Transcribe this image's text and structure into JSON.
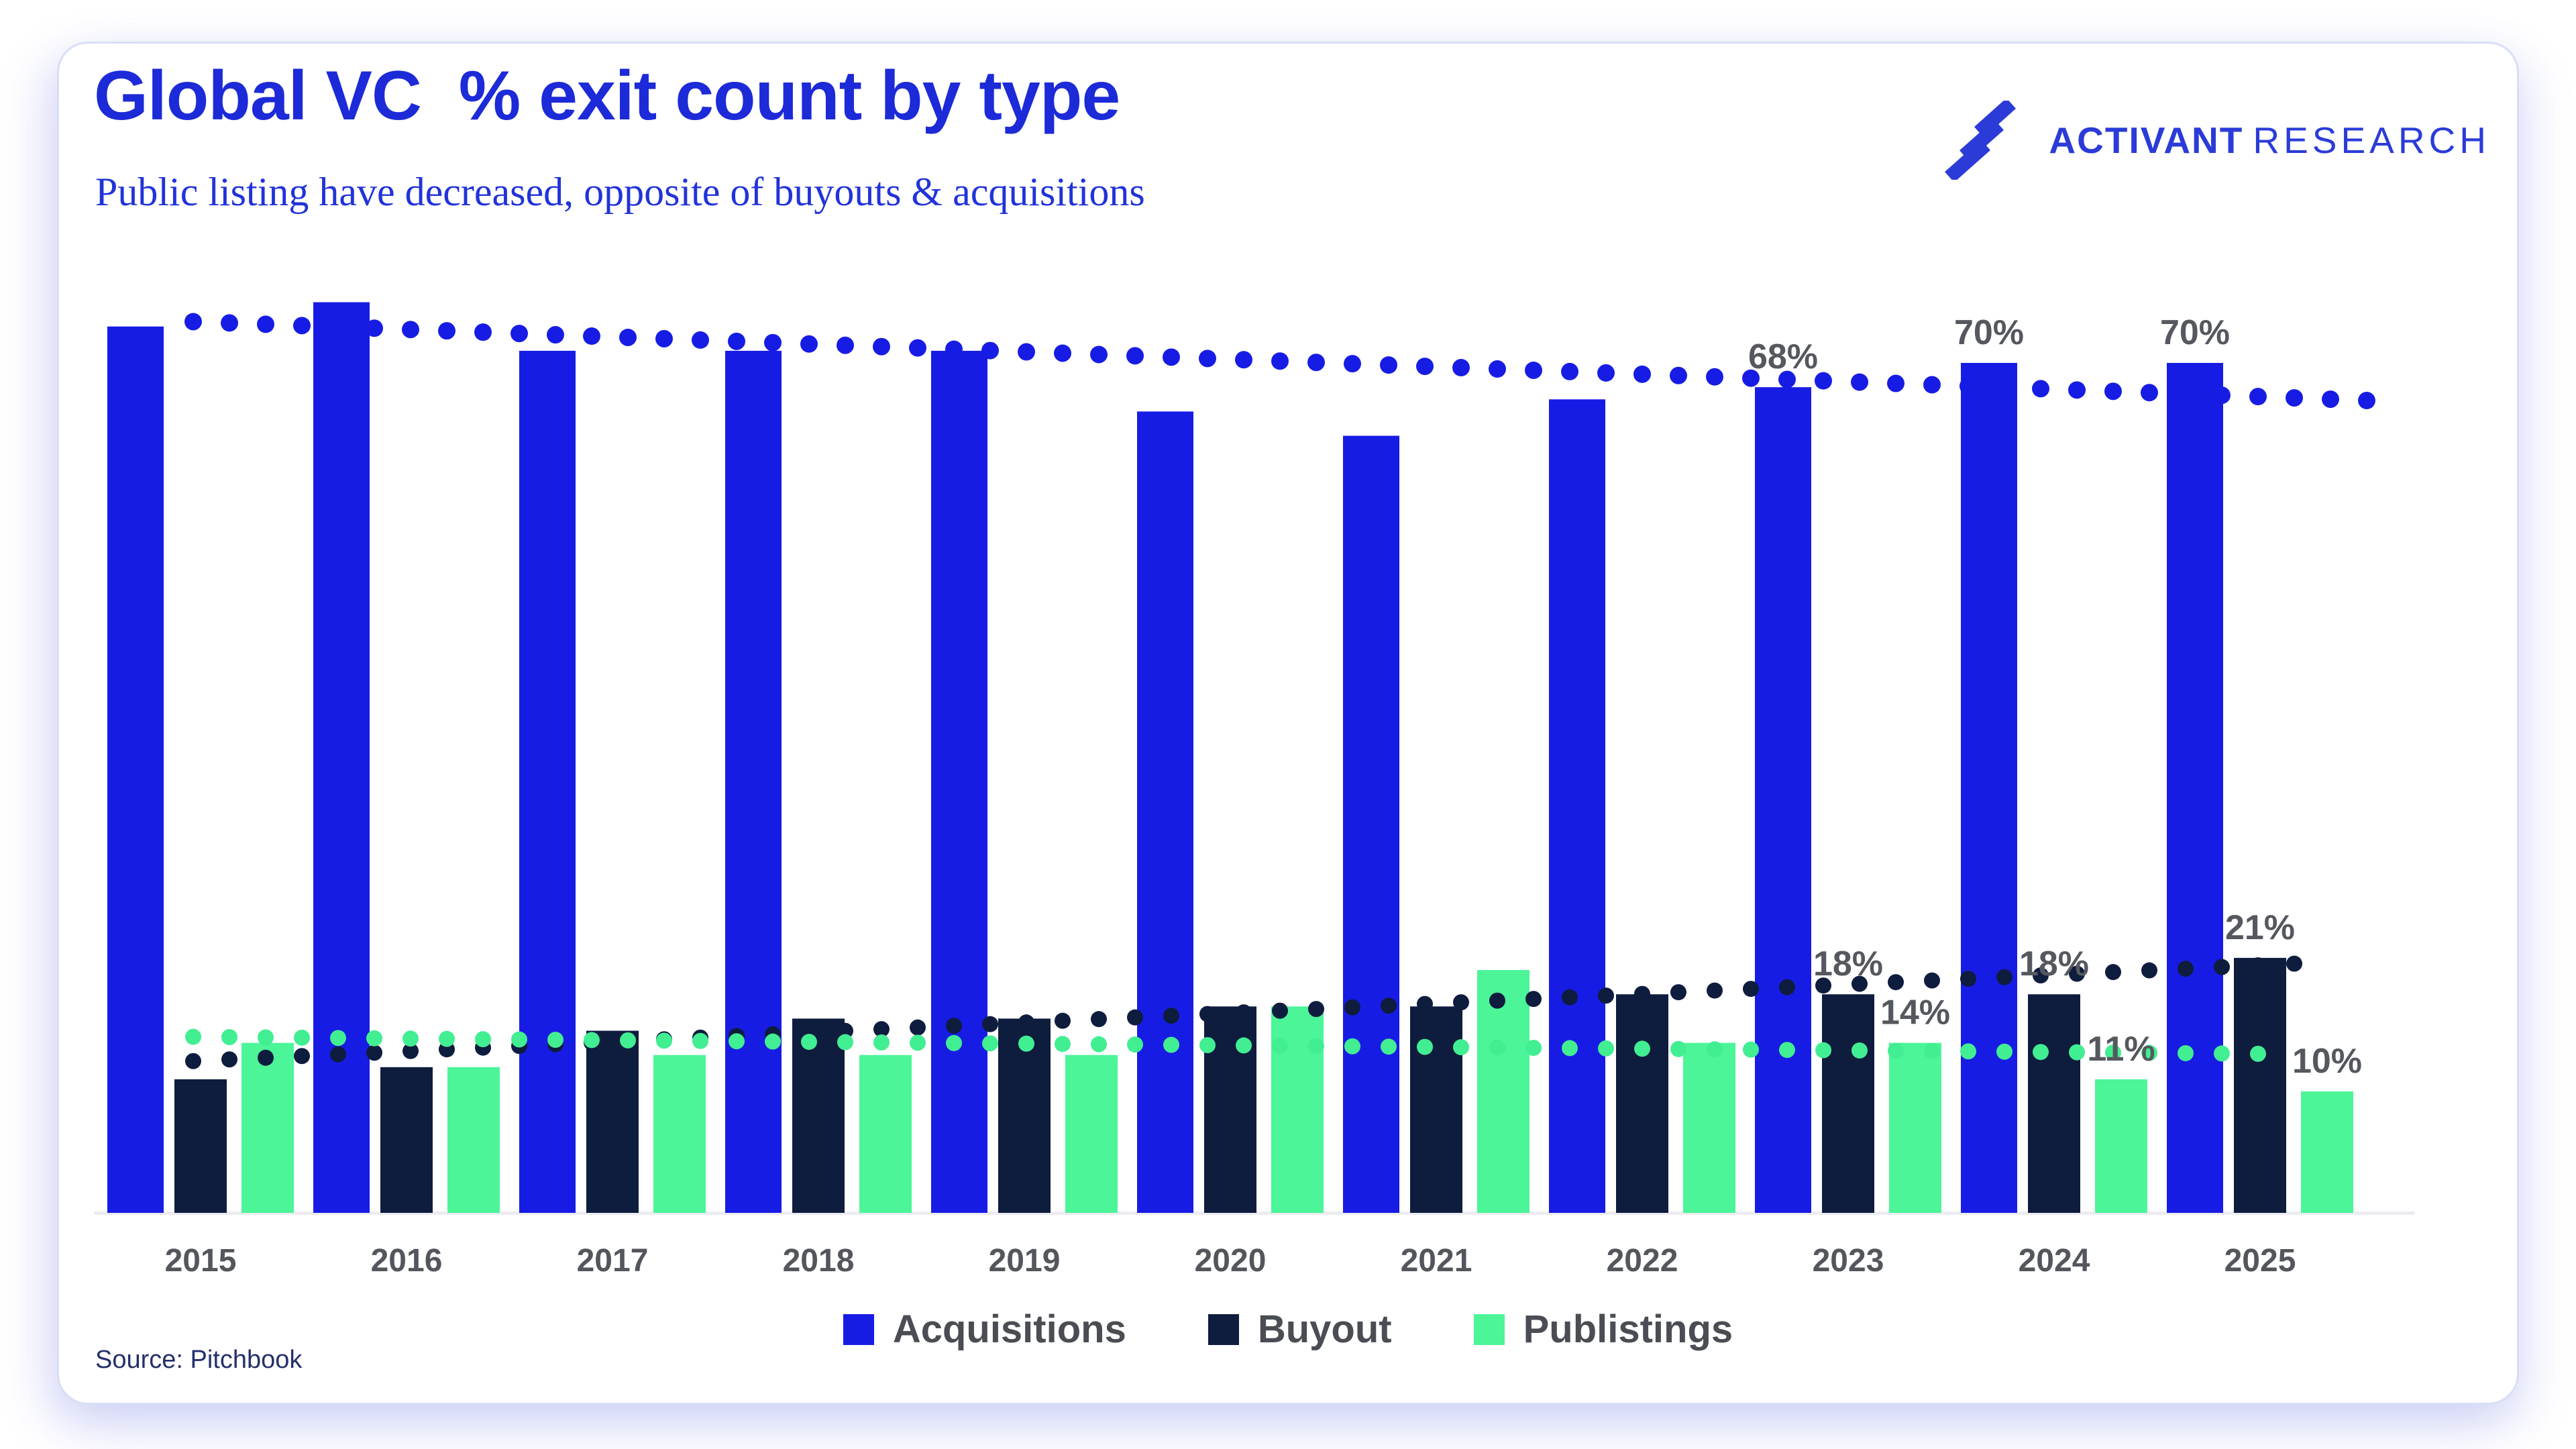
{
  "page": {
    "title": "Global VC  % exit count by type",
    "subtitle": "Public listing have decreased, opposite of buyouts & acquisitions",
    "source": "Source: Pitchbook"
  },
  "logo": {
    "name_bold": "ACTIVANT",
    "name_light": "RESEARCH",
    "color": "#2b3bd8"
  },
  "chart_data": {
    "type": "bar",
    "title": "Global VC % exit count by type",
    "subtitle": "Public listing have decreased, opposite of buyouts & acquisitions",
    "categories": [
      "2015",
      "2016",
      "2017",
      "2018",
      "2019",
      "2020",
      "2021",
      "2022",
      "2023",
      "2024",
      "2025"
    ],
    "series": [
      {
        "name": "Acquisitions",
        "color": "#171ce4",
        "values": [
          73,
          75,
          71,
          71,
          71,
          66,
          64,
          67,
          68,
          70,
          70
        ],
        "shown_labels": [
          null,
          null,
          null,
          null,
          null,
          null,
          null,
          null,
          "68%",
          "70%",
          "70%"
        ]
      },
      {
        "name": "Buyout",
        "color": "#0e1c3e",
        "values": [
          11,
          12,
          15,
          16,
          16,
          17,
          17,
          18,
          18,
          18,
          21
        ],
        "shown_labels": [
          null,
          null,
          null,
          null,
          null,
          null,
          null,
          null,
          "18%",
          "18%",
          "21%"
        ]
      },
      {
        "name": "Publistings",
        "color": "#4bf598",
        "values": [
          14,
          12,
          13,
          13,
          13,
          17,
          20,
          14,
          14,
          11,
          10
        ],
        "shown_labels": [
          null,
          null,
          null,
          null,
          null,
          null,
          null,
          null,
          "14%",
          "11%",
          "10%"
        ]
      }
    ],
    "trendlines": [
      {
        "series": "Acquisitions",
        "style": "dotted",
        "color": "#171ce4",
        "start_pct": 73.4,
        "end_pct": 66.9
      },
      {
        "series": "Buyout",
        "style": "dotted",
        "color": "#0e1c3e",
        "start_pct": 12.5,
        "end_pct": 20.6
      },
      {
        "series": "Publistings",
        "style": "dotted",
        "color": "#42ee92",
        "start_pct": 14.5,
        "end_pct": 13.1
      }
    ],
    "ylim": [
      0,
      100
    ],
    "y_unit": "%",
    "grid": false,
    "y_axis_labels": false,
    "legend_position": "bottom",
    "label_color": "#55585e",
    "axis_color": "#ececf1"
  }
}
